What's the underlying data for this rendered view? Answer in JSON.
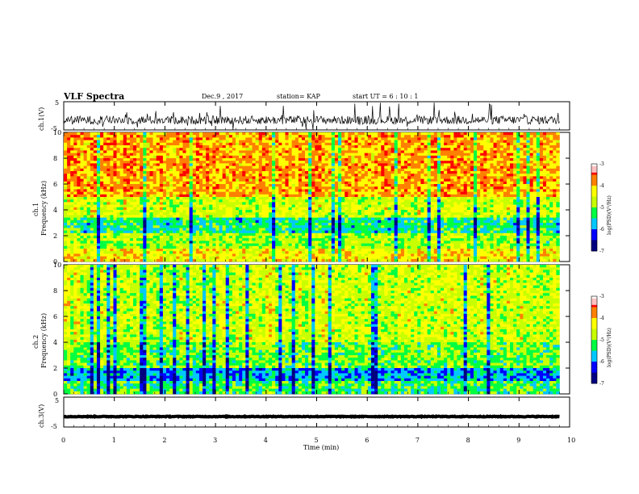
{
  "header": {
    "title": "VLF Spectra",
    "date": "Dec.9  , 2017",
    "station": "station= KAP",
    "start": "start  UT  =   6  : 10 : 1"
  },
  "chart_data": [
    {
      "type": "line",
      "panel": "ch1-waveform",
      "ylabel": "ch.1(V)",
      "ylim": [
        -5,
        5
      ],
      "yticks": [
        "5",
        "-5"
      ],
      "xlim": [
        0,
        9.8
      ],
      "description_values": "noise waveform around -1.5 V with spikes to ±5 V",
      "baseline": -1.5,
      "amplitude": 1.5
    },
    {
      "type": "heatmap",
      "panel": "ch1-spectrogram",
      "ylabel_line1": "ch.1",
      "ylabel_line2": "Frequency  (kHz)",
      "ylim": [
        0,
        10
      ],
      "yticks": [
        "0",
        "2",
        "4",
        "6",
        "8",
        "10"
      ],
      "xlim": [
        0,
        9.8
      ],
      "bands": [
        {
          "from": 0,
          "to": 1,
          "level": -4.3
        },
        {
          "from": 1,
          "to": 2.2,
          "level": -4.8
        },
        {
          "from": 2.2,
          "to": 3.5,
          "level": -5.4
        },
        {
          "from": 3.5,
          "to": 5,
          "level": -4.6
        },
        {
          "from": 5,
          "to": 10,
          "level": -3.9
        }
      ],
      "colorbar": {
        "label": "log(PSD)(V²/Hz)",
        "min": -7,
        "max": -3,
        "ticks": [
          "-3",
          "-4",
          "-5",
          "-6",
          "-7"
        ]
      }
    },
    {
      "type": "heatmap",
      "panel": "ch2-spectrogram",
      "ylabel_line1": "ch.2",
      "ylabel_line2": "Frequency  (kHz)",
      "ylim": [
        0,
        10
      ],
      "yticks": [
        "0",
        "2",
        "4",
        "6",
        "8",
        "10"
      ],
      "xlim": [
        0,
        9.8
      ],
      "bands": [
        {
          "from": 0,
          "to": 1,
          "level": -5.2
        },
        {
          "from": 1,
          "to": 2,
          "level": -5.8
        },
        {
          "from": 2,
          "to": 4,
          "level": -5.0
        },
        {
          "from": 4,
          "to": 10,
          "level": -4.6
        }
      ],
      "colorbar": {
        "label": "log(PSD)(V²/Hz)",
        "min": -7,
        "max": -3,
        "ticks": [
          "-3",
          "-4",
          "-5",
          "-6",
          "-7"
        ]
      }
    },
    {
      "type": "line",
      "panel": "ch3-waveform",
      "ylabel": "ch.3(V)",
      "ylim": [
        -5,
        5
      ],
      "yticks": [
        "5",
        "-5"
      ],
      "xlim": [
        0,
        9.8
      ],
      "baseline": -1.5,
      "amplitude": 0.25
    }
  ],
  "xaxis": {
    "label": "Time  (min)",
    "range": [
      0,
      10
    ],
    "ticks": [
      "0",
      "1",
      "2",
      "3",
      "4",
      "5",
      "6",
      "7",
      "8",
      "9",
      "10"
    ]
  },
  "colors": {
    "scale": [
      "#000080",
      "#0000ff",
      "#00c8ff",
      "#00ff40",
      "#c8ff00",
      "#ffff00",
      "#ff8000",
      "#ff0000",
      "#ffffff"
    ]
  }
}
